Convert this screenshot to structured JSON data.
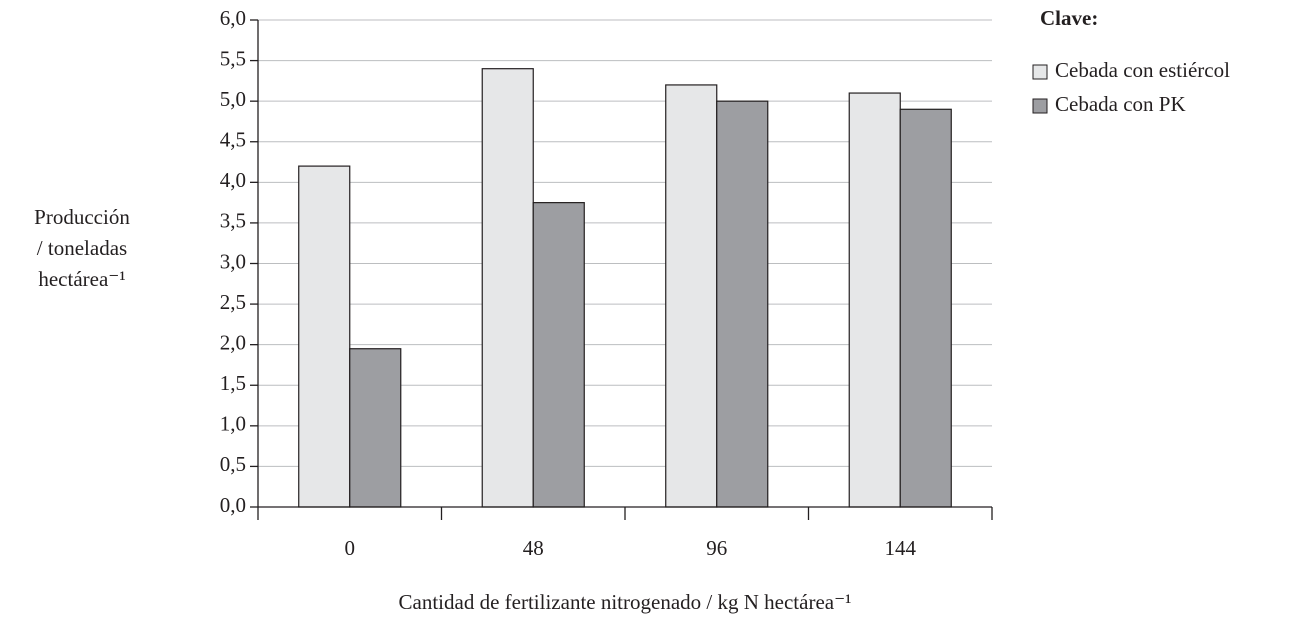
{
  "chart_data": {
    "type": "bar",
    "categories": [
      "0",
      "48",
      "96",
      "144"
    ],
    "series": [
      {
        "name": "Cebada con estiércol",
        "color": "#e6e7e8",
        "values": [
          4.2,
          5.4,
          5.2,
          5.1
        ]
      },
      {
        "name": "Cebada con PK",
        "color": "#9d9ea2",
        "values": [
          1.95,
          3.75,
          5.0,
          4.9
        ]
      }
    ],
    "ylim": [
      0,
      6
    ],
    "yticks": [
      {
        "value": 0,
        "label": "0,0"
      },
      {
        "value": 0.5,
        "label": "0,5"
      },
      {
        "value": 1,
        "label": "1,0"
      },
      {
        "value": 1.5,
        "label": "1,5"
      },
      {
        "value": 2,
        "label": "2,0"
      },
      {
        "value": 2.5,
        "label": "2,5"
      },
      {
        "value": 3,
        "label": "3,0"
      },
      {
        "value": 3.5,
        "label": "3,5"
      },
      {
        "value": 4,
        "label": "4,0"
      },
      {
        "value": 4.5,
        "label": "4,5"
      },
      {
        "value": 5,
        "label": "5,0"
      },
      {
        "value": 5.5,
        "label": "5,5"
      },
      {
        "value": 6,
        "label": "6,0"
      }
    ],
    "y_label": [
      "Producción",
      "/ toneladas",
      "hectárea⁻¹"
    ],
    "x_label": "Cantidad de fertilizante nitrogenado / kg N hectárea⁻¹",
    "legend_title": "Clave:",
    "legend_position": "top-right",
    "grid": true
  }
}
